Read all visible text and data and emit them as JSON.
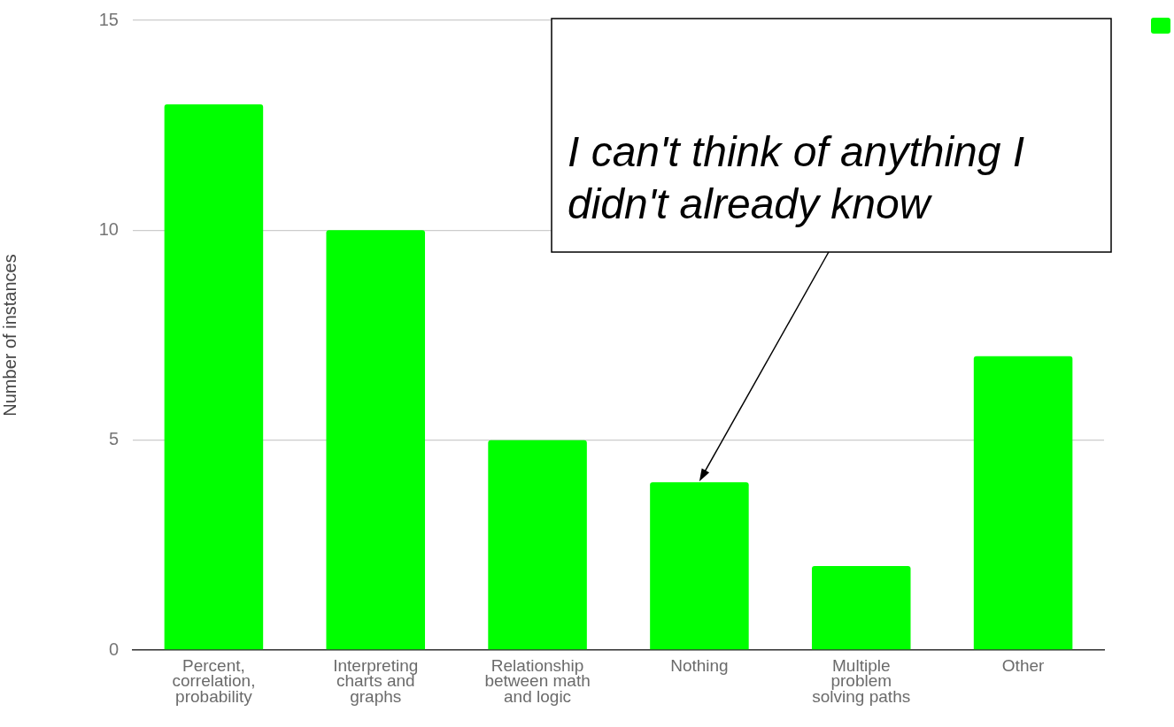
{
  "chart_data": {
    "type": "bar",
    "categories": [
      "Percent, correlation, probability",
      "Interpreting charts and graphs",
      "Relationship between math and logic",
      "Nothing",
      "Multiple problem solving paths",
      "Other"
    ],
    "values": [
      13,
      10,
      5,
      4,
      2,
      7
    ],
    "color": "#00ff00",
    "ylabel": "Number of instances",
    "ylim": [
      0,
      15
    ],
    "yticks": [
      0,
      5,
      10,
      15
    ],
    "grid": "y",
    "annotations": [
      {
        "text": "I can't think of anything I didn't already know",
        "x": "Nothing",
        "y": 4
      }
    ]
  }
}
